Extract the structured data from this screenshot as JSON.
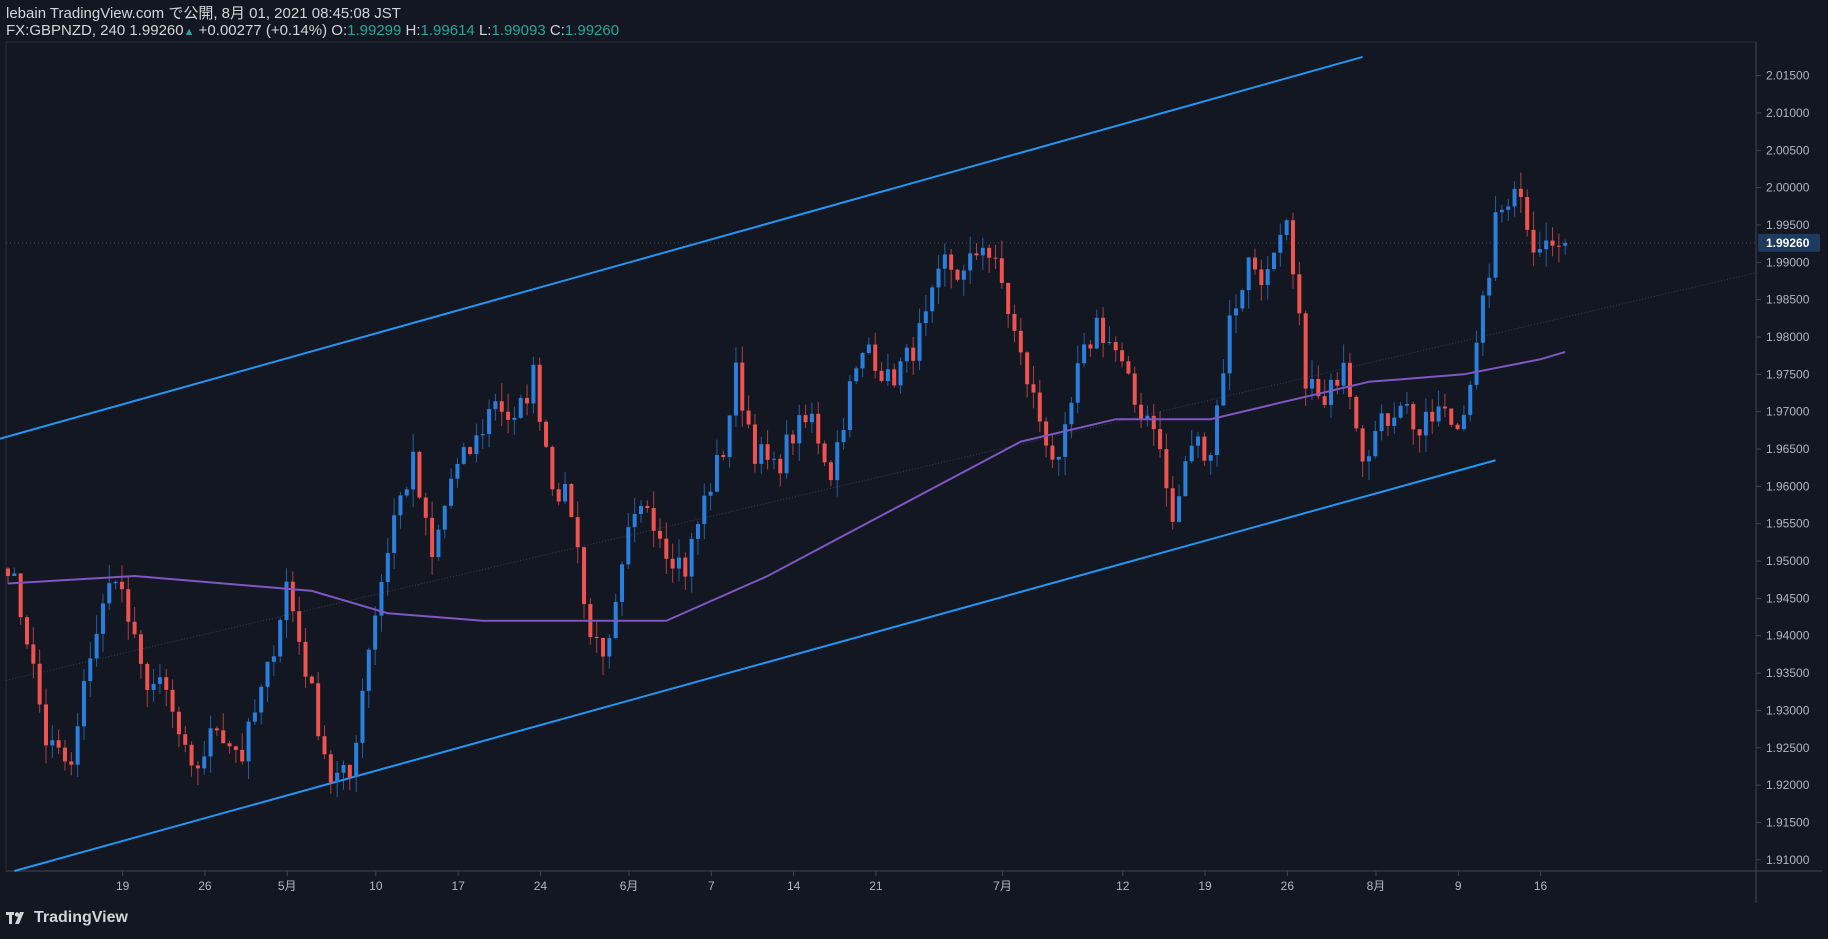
{
  "header": {
    "publish_line": "lebain TradingView.com で公開, 8月 01, 2021 08:45:08 JST",
    "symbol": "FX:GBPNZD, 240",
    "last": "1.99260",
    "change_arrow": "▲",
    "change": "+0.00277 (+0.14%)",
    "o_label": "O:",
    "o": "1.99299",
    "h_label": "H:",
    "h": "1.99614",
    "l_label": "L:",
    "l": "1.99093",
    "c_label": "C:",
    "c": "1.99260"
  },
  "footer": {
    "brand": "TradingView",
    "logo_icon": "tradingview-logo-icon"
  },
  "colors": {
    "background": "#131722",
    "up": "#2a7fdc",
    "down": "#ef5350",
    "channel": "#2196f3",
    "ma": "#7e57c2",
    "axis_text": "#b2b5be"
  },
  "chart_data": {
    "type": "candlestick",
    "title": "",
    "ylim": [
      1.9085,
      2.0195
    ],
    "y_ticks": [
      "1.91000",
      "1.91500",
      "1.92000",
      "1.92500",
      "1.93000",
      "1.93500",
      "1.94000",
      "1.94500",
      "1.95000",
      "1.95500",
      "1.96000",
      "1.96500",
      "1.97000",
      "1.97500",
      "1.98000",
      "1.98500",
      "1.99000",
      "1.99500",
      "2.00000",
      "2.00500",
      "2.01000",
      "2.01500"
    ],
    "last_price_label": "1.99260",
    "last_price": 1.9926,
    "x_ticks": [
      "19",
      "26",
      "5月",
      "10",
      "17",
      "24",
      "6月",
      "7",
      "14",
      "21",
      "7月",
      "12",
      "19",
      "26",
      "8月",
      "9",
      "16"
    ],
    "price_anchors": [
      [
        0,
        1.95
      ],
      [
        3,
        1.94
      ],
      [
        6,
        1.926
      ],
      [
        10,
        1.922
      ],
      [
        13,
        1.938
      ],
      [
        17,
        1.949
      ],
      [
        21,
        1.935
      ],
      [
        25,
        1.932
      ],
      [
        29,
        1.921
      ],
      [
        33,
        1.928
      ],
      [
        37,
        1.924
      ],
      [
        41,
        1.935
      ],
      [
        44,
        1.947
      ],
      [
        48,
        1.932
      ],
      [
        51,
        1.921
      ],
      [
        54,
        1.921
      ],
      [
        57,
        1.939
      ],
      [
        61,
        1.956
      ],
      [
        64,
        1.963
      ],
      [
        67,
        1.95
      ],
      [
        70,
        1.961
      ],
      [
        74,
        1.966
      ],
      [
        77,
        1.972
      ],
      [
        80,
        1.968
      ],
      [
        83,
        1.975
      ],
      [
        86,
        1.961
      ],
      [
        89,
        1.957
      ],
      [
        92,
        1.94
      ],
      [
        95,
        1.938
      ],
      [
        98,
        1.953
      ],
      [
        101,
        1.958
      ],
      [
        104,
        1.952
      ],
      [
        107,
        1.949
      ],
      [
        110,
        1.958
      ],
      [
        113,
        1.965
      ],
      [
        115,
        1.975
      ],
      [
        118,
        1.965
      ],
      [
        121,
        1.962
      ],
      [
        124,
        1.967
      ],
      [
        127,
        1.969
      ],
      [
        130,
        1.962
      ],
      [
        133,
        1.973
      ],
      [
        136,
        1.979
      ],
      [
        139,
        1.974
      ],
      [
        142,
        1.977
      ],
      [
        145,
        1.982
      ],
      [
        148,
        1.99
      ],
      [
        151,
        1.988
      ],
      [
        154,
        1.993
      ],
      [
        157,
        1.987
      ],
      [
        160,
        1.977
      ],
      [
        163,
        1.969
      ],
      [
        166,
        1.962
      ],
      [
        169,
        1.975
      ],
      [
        172,
        1.982
      ],
      [
        175,
        1.978
      ],
      [
        178,
        1.971
      ],
      [
        181,
        1.969
      ],
      [
        184,
        1.955
      ],
      [
        187,
        1.966
      ],
      [
        190,
        1.965
      ],
      [
        193,
        1.982
      ],
      [
        196,
        1.99
      ],
      [
        199,
        1.988
      ],
      [
        202,
        1.994
      ],
      [
        205,
        1.975
      ],
      [
        208,
        1.97
      ],
      [
        211,
        1.978
      ],
      [
        214,
        1.965
      ],
      [
        217,
        1.968
      ],
      [
        220,
        1.972
      ],
      [
        223,
        1.967
      ],
      [
        226,
        1.97
      ],
      [
        229,
        1.968
      ],
      [
        232,
        1.978
      ],
      [
        235,
        1.995
      ],
      [
        238,
        2.001
      ],
      [
        241,
        1.993
      ],
      [
        244,
        1.992
      ],
      [
        246,
        1.9926
      ]
    ],
    "series": [
      {
        "name": "",
        "type": "line",
        "points": [
          [
            0,
            1.947
          ],
          [
            20,
            1.948
          ],
          [
            48,
            1.946
          ],
          [
            60,
            1.943
          ],
          [
            75,
            1.942
          ],
          [
            95,
            1.942
          ],
          [
            104,
            1.942
          ],
          [
            120,
            1.948
          ],
          [
            140,
            1.957
          ],
          [
            160,
            1.966
          ],
          [
            175,
            1.969
          ],
          [
            190,
            1.969
          ],
          [
            200,
            1.971
          ],
          [
            215,
            1.974
          ],
          [
            230,
            1.975
          ],
          [
            242,
            1.977
          ],
          [
            246,
            1.978
          ]
        ]
      }
    ],
    "channel": {
      "upper": [
        [
          -5,
          1.9655
        ],
        [
          214,
          2.0175
        ]
      ],
      "lower": [
        [
          1,
          1.9085
        ],
        [
          235,
          1.9635
        ]
      ]
    },
    "x_tick_bars": [
      8,
      21,
      34,
      48,
      61,
      74,
      88,
      101,
      114,
      127,
      147,
      166,
      179,
      192,
      206,
      219,
      232
    ]
  }
}
